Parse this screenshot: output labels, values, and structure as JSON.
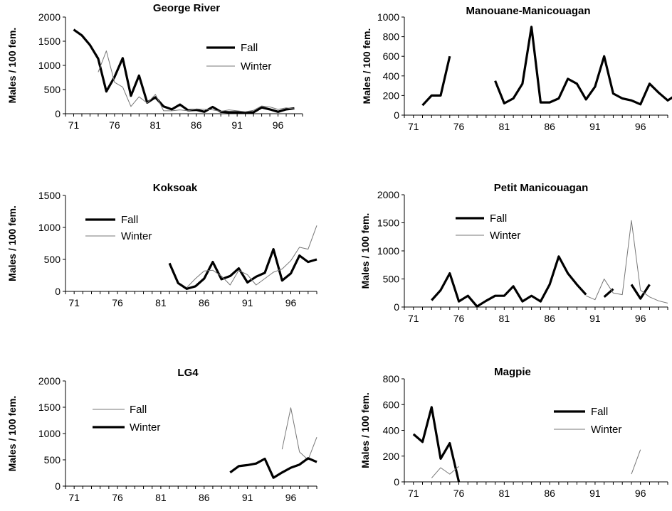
{
  "chart_data": [
    {
      "type": "line",
      "title": "George River",
      "ylabel": "Males / 100 fem.",
      "ylim": [
        0,
        2000
      ],
      "yticks": [
        "0",
        "500",
        "1000",
        "1500",
        "2000"
      ],
      "xlim": [
        70,
        99
      ],
      "xticks": [
        "71",
        "76",
        "81",
        "86",
        "91",
        "96"
      ],
      "legend": "top-right",
      "series": [
        {
          "name": "Fall",
          "style": "bold",
          "values": [
            [
              71,
              1740
            ],
            [
              72,
              1620
            ],
            [
              73,
              1420
            ],
            [
              74,
              1140
            ],
            [
              75,
              460
            ],
            [
              76,
              760
            ],
            [
              77,
              1150
            ],
            [
              78,
              370
            ],
            [
              79,
              790
            ],
            [
              80,
              230
            ],
            [
              81,
              340
            ],
            [
              82,
              150
            ],
            [
              83,
              90
            ],
            [
              84,
              190
            ],
            [
              85,
              70
            ],
            [
              86,
              80
            ],
            [
              87,
              40
            ],
            [
              88,
              140
            ],
            [
              89,
              40
            ],
            [
              90,
              30
            ],
            [
              91,
              30
            ],
            [
              92,
              20
            ],
            [
              93,
              30
            ],
            [
              94,
              130
            ],
            [
              95,
              90
            ],
            [
              96,
              40
            ],
            [
              97,
              90
            ],
            [
              98,
              110
            ]
          ]
        },
        {
          "name": "Winter",
          "style": "thin",
          "values": [
            [
              74,
              860
            ],
            [
              75,
              1300
            ],
            [
              76,
              650
            ],
            [
              77,
              550
            ],
            [
              78,
              150
            ],
            [
              79,
              350
            ],
            [
              80,
              220
            ],
            [
              81,
              400
            ],
            [
              82,
              60
            ],
            [
              83,
              60
            ],
            [
              84,
              80
            ],
            [
              85,
              60
            ],
            [
              86,
              100
            ],
            [
              87,
              90
            ],
            [
              88,
              80
            ],
            [
              89,
              50
            ],
            [
              90,
              80
            ],
            [
              91,
              60
            ],
            [
              92,
              40
            ],
            [
              93,
              70
            ],
            [
              94,
              160
            ],
            [
              95,
              140
            ],
            [
              96,
              90
            ],
            [
              97,
              120
            ],
            [
              98,
              100
            ]
          ]
        }
      ]
    },
    {
      "type": "line",
      "title": "Manouane-Manicouagan",
      "ylabel": "Males / 100 fem.",
      "ylim": [
        0,
        1000
      ],
      "yticks": [
        "0",
        "200",
        "400",
        "600",
        "800",
        "1000"
      ],
      "xlim": [
        70,
        99
      ],
      "xticks": [
        "71",
        "76",
        "81",
        "86",
        "91",
        "96"
      ],
      "legend": "none",
      "series": [
        {
          "name": "",
          "style": "bold",
          "values": [
            [
              72,
              100
            ],
            [
              73,
              200
            ],
            [
              74,
              200
            ],
            [
              75,
              600
            ],
            [
              76,
              null
            ],
            [
              77,
              null
            ],
            [
              78,
              null
            ],
            [
              79,
              null
            ],
            [
              80,
              350
            ],
            [
              81,
              120
            ],
            [
              82,
              170
            ],
            [
              83,
              320
            ],
            [
              84,
              900
            ],
            [
              85,
              130
            ],
            [
              86,
              130
            ],
            [
              87,
              170
            ],
            [
              88,
              370
            ],
            [
              89,
              320
            ],
            [
              90,
              160
            ],
            [
              91,
              290
            ],
            [
              92,
              600
            ],
            [
              93,
              220
            ],
            [
              94,
              170
            ],
            [
              95,
              150
            ],
            [
              96,
              110
            ],
            [
              97,
              320
            ],
            [
              98,
              230
            ],
            [
              99,
              150
            ],
            [
              100,
              210
            ]
          ]
        }
      ]
    },
    {
      "type": "line",
      "title": "Koksoak",
      "ylabel": "Males / 100 fem.",
      "ylim": [
        0,
        1500
      ],
      "yticks": [
        "0",
        "500",
        "1000",
        "1500"
      ],
      "xlim": [
        70,
        99
      ],
      "xticks": [
        "71",
        "76",
        "81",
        "86",
        "91",
        "96"
      ],
      "legend": "top-left",
      "series": [
        {
          "name": "Fall",
          "style": "bold",
          "values": [
            [
              82,
              440
            ],
            [
              83,
              130
            ],
            [
              84,
              40
            ],
            [
              85,
              80
            ],
            [
              86,
              200
            ],
            [
              87,
              460
            ],
            [
              88,
              190
            ],
            [
              89,
              240
            ],
            [
              90,
              360
            ],
            [
              91,
              140
            ],
            [
              92,
              230
            ],
            [
              93,
              290
            ],
            [
              94,
              660
            ],
            [
              95,
              170
            ],
            [
              96,
              280
            ],
            [
              97,
              560
            ],
            [
              98,
              460
            ],
            [
              99,
              500
            ]
          ]
        },
        {
          "name": "Winter",
          "style": "thin",
          "values": [
            [
              84,
              60
            ],
            [
              85,
              200
            ],
            [
              86,
              320
            ],
            [
              87,
              330
            ],
            [
              88,
              240
            ],
            [
              89,
              100
            ],
            [
              90,
              330
            ],
            [
              91,
              260
            ],
            [
              92,
              100
            ],
            [
              93,
              200
            ],
            [
              94,
              300
            ],
            [
              95,
              350
            ],
            [
              96,
              480
            ],
            [
              97,
              690
            ],
            [
              98,
              660
            ],
            [
              99,
              1030
            ]
          ]
        }
      ]
    },
    {
      "type": "line",
      "title": "Petit Manicouagan",
      "ylabel": "Males / 100 fem.",
      "ylim": [
        0,
        2000
      ],
      "yticks": [
        "0",
        "500",
        "1000",
        "1500",
        "2000"
      ],
      "xlim": [
        70,
        99
      ],
      "xticks": [
        "71",
        "76",
        "81",
        "86",
        "91",
        "96"
      ],
      "legend": "top-left",
      "series": [
        {
          "name": "Fall",
          "style": "bold",
          "values": [
            [
              73,
              120
            ],
            [
              74,
              300
            ],
            [
              75,
              600
            ],
            [
              76,
              100
            ],
            [
              77,
              200
            ],
            [
              78,
              10
            ],
            [
              79,
              110
            ],
            [
              80,
              200
            ],
            [
              81,
              200
            ],
            [
              82,
              370
            ],
            [
              83,
              100
            ],
            [
              84,
              200
            ],
            [
              85,
              100
            ],
            [
              86,
              400
            ],
            [
              87,
              900
            ],
            [
              88,
              600
            ],
            [
              89,
              400
            ],
            [
              90,
              220
            ],
            [
              91,
              null
            ],
            [
              92,
              180
            ],
            [
              93,
              320
            ],
            [
              94,
              null
            ],
            [
              95,
              400
            ],
            [
              96,
              150
            ],
            [
              97,
              400
            ]
          ]
        },
        {
          "name": "Winter",
          "style": "thin",
          "values": [
            [
              90,
              200
            ],
            [
              91,
              130
            ],
            [
              92,
              500
            ],
            [
              93,
              250
            ],
            [
              94,
              220
            ],
            [
              95,
              1540
            ],
            [
              96,
              300
            ],
            [
              97,
              180
            ],
            [
              98,
              110
            ],
            [
              99,
              70
            ]
          ]
        }
      ]
    },
    {
      "type": "line",
      "title": "LG4",
      "ylabel": "Males / 100 fem.",
      "ylim": [
        0,
        2000
      ],
      "yticks": [
        "0",
        "500",
        "1000",
        "1500",
        "2000"
      ],
      "xlim": [
        70,
        99
      ],
      "xticks": [
        "71",
        "76",
        "81",
        "86",
        "91",
        "96"
      ],
      "legend": "top-left",
      "series": [
        {
          "name": "Fall",
          "style": "thin",
          "values": [
            [
              95,
              700
            ],
            [
              96,
              1490
            ],
            [
              97,
              650
            ],
            [
              98,
              500
            ],
            [
              99,
              930
            ]
          ]
        },
        {
          "name": "Winter",
          "style": "bold",
          "values": [
            [
              89,
              260
            ],
            [
              90,
              380
            ],
            [
              91,
              400
            ],
            [
              92,
              430
            ],
            [
              93,
              520
            ],
            [
              94,
              160
            ],
            [
              95,
              260
            ],
            [
              96,
              350
            ],
            [
              97,
              410
            ],
            [
              98,
              530
            ],
            [
              99,
              460
            ]
          ]
        }
      ]
    },
    {
      "type": "line",
      "title": "Magpie",
      "ylabel": "Males / 100 fem.",
      "ylim": [
        0,
        800
      ],
      "yticks": [
        "0",
        "200",
        "400",
        "600",
        "800"
      ],
      "xlim": [
        70,
        99
      ],
      "xticks": [
        "71",
        "76",
        "81",
        "86",
        "91",
        "96"
      ],
      "legend": "top-right",
      "series": [
        {
          "name": "Fall",
          "style": "bold",
          "values": [
            [
              71,
              370
            ],
            [
              72,
              310
            ],
            [
              73,
              580
            ],
            [
              74,
              180
            ],
            [
              75,
              300
            ],
            [
              76,
              0
            ]
          ]
        },
        {
          "name": "Winter",
          "style": "thin",
          "values": [
            [
              73,
              30
            ],
            [
              74,
              110
            ],
            [
              75,
              60
            ],
            [
              76,
              120
            ],
            [
              77,
              null
            ],
            [
              95,
              60
            ],
            [
              96,
              250
            ]
          ]
        }
      ]
    }
  ]
}
